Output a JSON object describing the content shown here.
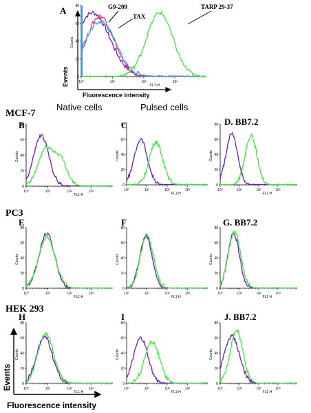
{
  "figure": {
    "subtitles": {
      "native": "Native cells",
      "pulsed": "Pulsed cells"
    },
    "row_titles": [
      "MCF-7",
      "PC3",
      "HEK 293"
    ],
    "axis_labels": {
      "events": "Events",
      "fluorescence": "Fluorescence intensity",
      "counts": "Counts",
      "fl1h": "FL1-H"
    },
    "annotations": {
      "g9": "G9-209",
      "tax": "TAX",
      "tarp": "TARP 29-37"
    },
    "colors": {
      "purple": "#6a1fb0",
      "green": "#3ee63e",
      "pink": "#ff2f7a",
      "blue": "#2e9be0"
    }
  },
  "chart_data": [
    {
      "type": "line",
      "panel": "A",
      "letter": "A",
      "xscale": "log",
      "xlim": [
        1,
        10000
      ],
      "ylim": [
        0,
        80
      ],
      "yticks": [
        0,
        20,
        40,
        60,
        80
      ],
      "xticks": [
        "10⁰",
        "10¹",
        "10²",
        "10³"
      ],
      "series": [
        {
          "color": "purple",
          "peak": 2.3,
          "height": 72,
          "width": 0.55
        },
        {
          "color": "pink",
          "peak": 4.0,
          "height": 68,
          "width": 0.45
        },
        {
          "color": "blue",
          "peak": 4.0,
          "height": 62,
          "width": 0.5
        },
        {
          "color": "green",
          "peak": 320,
          "height": 72,
          "width": 0.42
        }
      ]
    },
    {
      "type": "line",
      "panel": "B",
      "letter": "B",
      "xscale": "log",
      "xlim": [
        1,
        10000
      ],
      "ylim": [
        0,
        80
      ],
      "yticks": [
        0,
        20,
        40,
        60,
        80
      ],
      "xticks": [
        "10⁰",
        "10¹",
        "10²",
        "10³"
      ],
      "series": [
        {
          "color": "purple",
          "peak": 5,
          "height": 65,
          "width": 0.35
        },
        {
          "color": "green",
          "peak": 8,
          "height": 48,
          "width": 0.35,
          "peak2": 40,
          "height2": 32,
          "width2": 0.3
        }
      ]
    },
    {
      "type": "line",
      "panel": "C",
      "letter": "C",
      "xscale": "log",
      "xlim": [
        1,
        10000
      ],
      "ylim": [
        0,
        80
      ],
      "yticks": [
        0,
        20,
        40,
        60,
        80
      ],
      "xticks": [
        "10⁰",
        "10¹",
        "10²",
        "10³"
      ],
      "series": [
        {
          "color": "purple",
          "peak": 5,
          "height": 60,
          "width": 0.32
        },
        {
          "color": "green",
          "peak": 28,
          "height": 56,
          "width": 0.33
        }
      ]
    },
    {
      "type": "line",
      "panel": "D",
      "letter": "D. BB7.2",
      "xscale": "log",
      "xlim": [
        1,
        10000
      ],
      "ylim": [
        0,
        80
      ],
      "yticks": [
        0,
        20,
        40,
        60,
        80
      ],
      "xticks": [
        "10⁰",
        "10¹",
        "10²",
        "10³"
      ],
      "series": [
        {
          "color": "purple",
          "peak": 4,
          "height": 68,
          "width": 0.3
        },
        {
          "color": "green",
          "peak": 40,
          "height": 65,
          "width": 0.3
        }
      ]
    },
    {
      "type": "line",
      "panel": "E",
      "letter": "E",
      "xscale": "log",
      "xlim": [
        1,
        10000
      ],
      "ylim": [
        0,
        80
      ],
      "yticks": [
        0,
        20,
        40,
        60,
        80
      ],
      "xticks": [
        "10⁰",
        "10¹",
        "10²",
        "10³"
      ],
      "series": [
        {
          "color": "purple",
          "peak": 9,
          "height": 72,
          "width": 0.36
        },
        {
          "color": "green",
          "peak": 9,
          "height": 68,
          "width": 0.38
        }
      ]
    },
    {
      "type": "line",
      "panel": "F",
      "letter": "F",
      "xscale": "log",
      "xlim": [
        1,
        10000
      ],
      "ylim": [
        0,
        80
      ],
      "yticks": [
        0,
        20,
        40,
        60,
        80
      ],
      "xticks": [
        "10⁰",
        "10¹",
        "10²",
        "10³"
      ],
      "series": [
        {
          "color": "purple",
          "peak": 9,
          "height": 70,
          "width": 0.3
        },
        {
          "color": "green",
          "peak": 10,
          "height": 70,
          "width": 0.32
        }
      ]
    },
    {
      "type": "line",
      "panel": "G",
      "letter": "G. BB7.2",
      "xscale": "log",
      "xlim": [
        1,
        10000
      ],
      "ylim": [
        0,
        80
      ],
      "yticks": [
        0,
        20,
        40,
        60,
        80
      ],
      "xticks": [
        "10⁰",
        "10¹",
        "10²",
        "10³"
      ],
      "series": [
        {
          "color": "purple",
          "peak": 5,
          "height": 72,
          "width": 0.3
        },
        {
          "color": "green",
          "peak": 5.5,
          "height": 74,
          "width": 0.32
        }
      ]
    },
    {
      "type": "line",
      "panel": "H",
      "letter": "H",
      "xscale": "log",
      "xlim": [
        1,
        10000
      ],
      "ylim": [
        0,
        80
      ],
      "yticks": [
        0,
        20,
        40,
        60,
        80
      ],
      "xticks": [
        "10⁰",
        "10¹",
        "10²",
        "10³"
      ],
      "series": [
        {
          "color": "purple",
          "peak": 7,
          "height": 62,
          "width": 0.36
        },
        {
          "color": "green",
          "peak": 8,
          "height": 66,
          "width": 0.36
        }
      ]
    },
    {
      "type": "line",
      "panel": "I",
      "letter": "I",
      "xscale": "log",
      "xlim": [
        1,
        10000
      ],
      "ylim": [
        0,
        80
      ],
      "yticks": [
        0,
        20,
        40,
        60,
        80
      ],
      "xticks": [
        "10⁰",
        "10¹",
        "10²",
        "10³"
      ],
      "series": [
        {
          "color": "purple",
          "peak": 5,
          "height": 60,
          "width": 0.35
        },
        {
          "color": "green",
          "peak": 18,
          "height": 55,
          "width": 0.36
        }
      ]
    },
    {
      "type": "line",
      "panel": "J",
      "letter": "J. BB7.2",
      "xscale": "log",
      "xlim": [
        1,
        10000
      ],
      "ylim": [
        0,
        80
      ],
      "yticks": [
        0,
        20,
        40,
        60,
        80
      ],
      "xticks": [
        "10⁰",
        "10¹",
        "10²",
        "10³"
      ],
      "series": [
        {
          "color": "purple",
          "peak": 4,
          "height": 62,
          "width": 0.4
        },
        {
          "color": "green",
          "peak": 7,
          "height": 70,
          "width": 0.33
        }
      ]
    }
  ]
}
